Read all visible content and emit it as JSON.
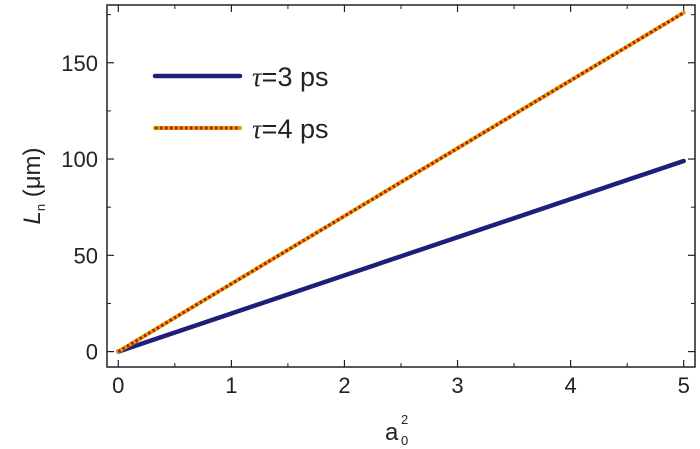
{
  "chart_data": {
    "type": "line",
    "xlabel": {
      "base": "a",
      "sup": "2",
      "sub": "0"
    },
    "ylabel": {
      "base": "L",
      "sub": "n",
      "unit": " (μm)"
    },
    "xlim": [
      -0.1,
      5.1
    ],
    "ylim": [
      -8,
      180
    ],
    "xticks": [
      0,
      1,
      2,
      3,
      4,
      5
    ],
    "yticks": [
      0,
      50,
      100,
      150
    ],
    "grid": false,
    "legend_position": "top-left",
    "series": [
      {
        "name": "τ=3 ps",
        "name_symbol": "τ",
        "name_rest": "=3 ps",
        "style": "solid",
        "color": "#1f1f7a",
        "x": [
          0,
          1,
          2,
          3,
          4,
          5
        ],
        "y": [
          0,
          19.8,
          39.6,
          59.4,
          79.2,
          99
        ]
      },
      {
        "name": "τ=4 ps",
        "name_symbol": "τ",
        "name_rest": "=4 ps",
        "style": "dotted",
        "color": "#d9a400",
        "dot_color": "#c01010",
        "x": [
          0,
          1,
          2,
          3,
          4,
          5
        ],
        "y": [
          0,
          35.2,
          70.4,
          105.6,
          140.8,
          176
        ]
      }
    ]
  }
}
